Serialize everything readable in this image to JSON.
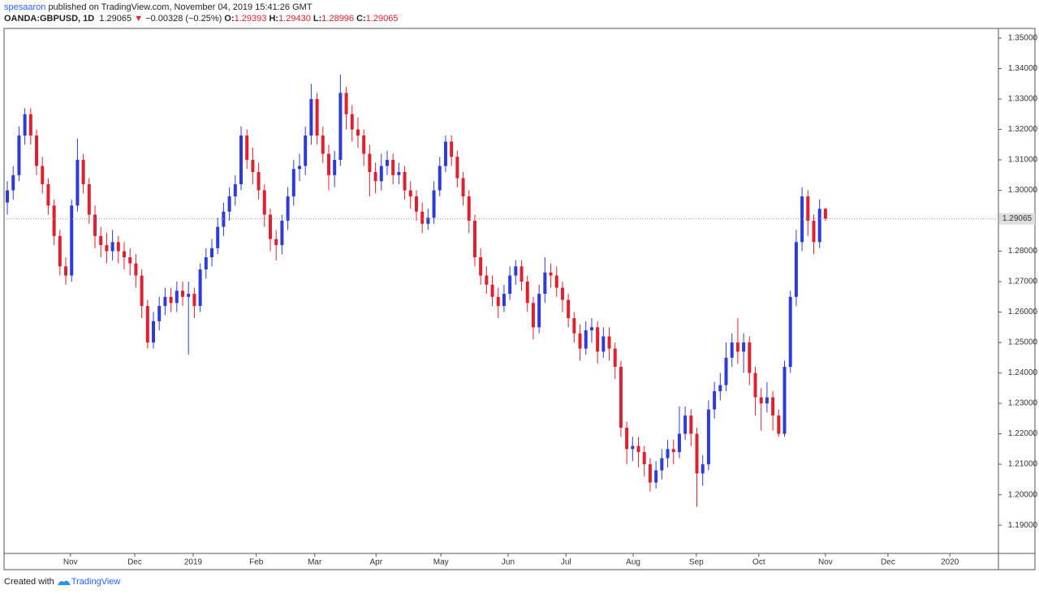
{
  "header": {
    "author": "spesaaron",
    "published": "published on TradingView.com, November 04, 2019 15:41:26 GMT",
    "symbol": "OANDA:GBPUSD, 1D",
    "price": "1.29065",
    "arrow": "▼",
    "change": "−0.00328 (−0.25%)",
    "open_label": "O:",
    "open": "1.29393",
    "high_label": "H:",
    "high": "1.29430",
    "low_label": "L:",
    "low": "1.28996",
    "close_label": "C:",
    "close": "1.29065"
  },
  "footer": {
    "created": "Created with",
    "brand": "TradingView"
  },
  "chart_data": {
    "type": "candlestick",
    "up_color": "#2e3bd6",
    "down_color": "#e0202e",
    "last_price": {
      "value": 1.29065,
      "label": "1.29065"
    },
    "xlim": [
      -0.56,
      169.6
    ],
    "xticks": [
      {
        "value": 10.8,
        "label": "Nov"
      },
      {
        "value": 21.8,
        "label": "Dec"
      },
      {
        "value": 31.8,
        "label": "2019"
      },
      {
        "value": 42.6,
        "label": "Feb"
      },
      {
        "value": 52.6,
        "label": "Mar"
      },
      {
        "value": 63.1,
        "label": "Apr"
      },
      {
        "value": 74.2,
        "label": "May"
      },
      {
        "value": 85.7,
        "label": "Jun"
      },
      {
        "value": 95.6,
        "label": "Jul"
      },
      {
        "value": 107.1,
        "label": "Aug"
      },
      {
        "value": 117.9,
        "label": "Sep"
      },
      {
        "value": 128.6,
        "label": "Oct"
      },
      {
        "value": 140,
        "label": "Nov"
      },
      {
        "value": 150.7,
        "label": "Dec"
      },
      {
        "value": 161.3,
        "label": "2020"
      }
    ],
    "ylim": [
      1.1807,
      1.3532
    ],
    "yticks": [
      {
        "value": 1.19,
        "label": "1.19000"
      },
      {
        "value": 1.2,
        "label": "1.20000"
      },
      {
        "value": 1.21,
        "label": "1.21000"
      },
      {
        "value": 1.22,
        "label": "1.22000"
      },
      {
        "value": 1.23,
        "label": "1.23000"
      },
      {
        "value": 1.24,
        "label": "1.24000"
      },
      {
        "value": 1.25,
        "label": "1.25000"
      },
      {
        "value": 1.26,
        "label": "1.26000"
      },
      {
        "value": 1.27,
        "label": "1.27000"
      },
      {
        "value": 1.28,
        "label": "1.28000"
      },
      {
        "value": 1.3,
        "label": "1.30000"
      },
      {
        "value": 1.31,
        "label": "1.31000"
      },
      {
        "value": 1.32,
        "label": "1.32000"
      },
      {
        "value": 1.33,
        "label": "1.33000"
      },
      {
        "value": 1.34,
        "label": "1.34000"
      },
      {
        "value": 1.35,
        "label": "1.35000"
      }
    ],
    "open": [
      1.296,
      1.3,
      1.305,
      1.318,
      1.325,
      1.318,
      1.308,
      1.302,
      1.295,
      1.285,
      1.275,
      1.272,
      1.295,
      1.31,
      1.302,
      1.292,
      1.285,
      1.282,
      1.28,
      1.283,
      1.28,
      1.278,
      1.276,
      1.272,
      1.262,
      1.25,
      1.257,
      1.262,
      1.265,
      1.263,
      1.267,
      1.265,
      1.266,
      1.262,
      1.274,
      1.278,
      1.281,
      1.288,
      1.293,
      1.298,
      1.302,
      1.318,
      1.31,
      1.306,
      1.3,
      1.292,
      1.284,
      1.282,
      1.29,
      1.298,
      1.307,
      1.308,
      1.318,
      1.33,
      1.318,
      1.312,
      1.305,
      1.31,
      1.332,
      1.325,
      1.32,
      1.318,
      1.312,
      1.306,
      1.303,
      1.308,
      1.31,
      1.305,
      1.306,
      1.3,
      1.298,
      1.293,
      1.289,
      1.291,
      1.3,
      1.308,
      1.316,
      1.311,
      1.304,
      1.298,
      1.29,
      1.278,
      1.272,
      1.269,
      1.265,
      1.262,
      1.266,
      1.272,
      1.275,
      1.27,
      1.263,
      1.255,
      1.266,
      1.273,
      1.272,
      1.268,
      1.264,
      1.258,
      1.253,
      1.248,
      1.254,
      1.255,
      1.247,
      1.252,
      1.248,
      1.242,
      1.222,
      1.215,
      1.216,
      1.214,
      1.21,
      1.204,
      1.208,
      1.212,
      1.215,
      1.214,
      1.22,
      1.226,
      1.22,
      1.207,
      1.21,
      1.228,
      1.234,
      1.236,
      1.245,
      1.25,
      1.247,
      1.25,
      1.24,
      1.232,
      1.23,
      1.232,
      1.226,
      1.22,
      1.242,
      1.265,
      1.283,
      1.298,
      1.29,
      1.283,
      1.29393
    ],
    "high": [
      1.303,
      1.308,
      1.321,
      1.327,
      1.327,
      1.32,
      1.311,
      1.304,
      1.297,
      1.287,
      1.278,
      1.297,
      1.317,
      1.312,
      1.304,
      1.295,
      1.288,
      1.286,
      1.287,
      1.285,
      1.283,
      1.281,
      1.279,
      1.274,
      1.264,
      1.26,
      1.265,
      1.268,
      1.268,
      1.27,
      1.27,
      1.27,
      1.268,
      1.276,
      1.281,
      1.284,
      1.291,
      1.296,
      1.301,
      1.305,
      1.321,
      1.32,
      1.314,
      1.309,
      1.302,
      1.294,
      1.287,
      1.292,
      1.301,
      1.31,
      1.312,
      1.321,
      1.335,
      1.332,
      1.321,
      1.315,
      1.313,
      1.338,
      1.334,
      1.328,
      1.324,
      1.32,
      1.315,
      1.309,
      1.312,
      1.313,
      1.312,
      1.309,
      1.308,
      1.303,
      1.3,
      1.296,
      1.294,
      1.303,
      1.311,
      1.318,
      1.318,
      1.313,
      1.306,
      1.3,
      1.292,
      1.281,
      1.275,
      1.272,
      1.268,
      1.269,
      1.275,
      1.277,
      1.277,
      1.272,
      1.265,
      1.269,
      1.278,
      1.276,
      1.275,
      1.27,
      1.266,
      1.26,
      1.256,
      1.257,
      1.258,
      1.257,
      1.255,
      1.255,
      1.25,
      1.244,
      1.224,
      1.219,
      1.219,
      1.216,
      1.212,
      1.211,
      1.215,
      1.218,
      1.218,
      1.229,
      1.229,
      1.228,
      1.222,
      1.213,
      1.231,
      1.237,
      1.24,
      1.25,
      1.253,
      1.258,
      1.253,
      1.252,
      1.242,
      1.235,
      1.237,
      1.234,
      1.228,
      1.244,
      1.267,
      1.287,
      1.301,
      1.3,
      1.292,
      1.297,
      1.2943
    ],
    "low": [
      1.292,
      1.297,
      1.303,
      1.315,
      1.315,
      1.305,
      1.299,
      1.292,
      1.282,
      1.272,
      1.269,
      1.27,
      1.293,
      1.299,
      1.289,
      1.281,
      1.278,
      1.276,
      1.277,
      1.276,
      1.274,
      1.272,
      1.268,
      1.258,
      1.248,
      1.248,
      1.254,
      1.259,
      1.26,
      1.26,
      1.262,
      1.246,
      1.258,
      1.26,
      1.271,
      1.275,
      1.279,
      1.285,
      1.29,
      1.295,
      1.3,
      1.307,
      1.302,
      1.297,
      1.288,
      1.28,
      1.277,
      1.279,
      1.287,
      1.295,
      1.303,
      1.305,
      1.315,
      1.315,
      1.309,
      1.3,
      1.301,
      1.308,
      1.32,
      1.316,
      1.314,
      1.308,
      1.298,
      1.299,
      1.3,
      1.305,
      1.302,
      1.302,
      1.297,
      1.294,
      1.29,
      1.286,
      1.287,
      1.289,
      1.298,
      1.306,
      1.308,
      1.301,
      1.295,
      1.286,
      1.275,
      1.269,
      1.266,
      1.262,
      1.258,
      1.26,
      1.264,
      1.269,
      1.267,
      1.26,
      1.251,
      1.253,
      1.263,
      1.268,
      1.265,
      1.26,
      1.255,
      1.25,
      1.244,
      1.246,
      1.25,
      1.243,
      1.245,
      1.244,
      1.238,
      1.219,
      1.21,
      1.211,
      1.209,
      1.206,
      1.201,
      1.202,
      1.205,
      1.209,
      1.21,
      1.212,
      1.218,
      1.216,
      1.196,
      1.203,
      1.208,
      1.225,
      1.231,
      1.234,
      1.242,
      1.243,
      1.24,
      1.236,
      1.226,
      1.221,
      1.227,
      1.221,
      1.219,
      1.219,
      1.24,
      1.262,
      1.28,
      1.285,
      1.279,
      1.281,
      1.28996
    ],
    "close": [
      1.3,
      1.305,
      1.318,
      1.325,
      1.318,
      1.308,
      1.302,
      1.295,
      1.285,
      1.275,
      1.272,
      1.295,
      1.31,
      1.302,
      1.292,
      1.285,
      1.282,
      1.28,
      1.283,
      1.28,
      1.278,
      1.276,
      1.272,
      1.262,
      1.25,
      1.257,
      1.262,
      1.265,
      1.263,
      1.267,
      1.265,
      1.266,
      1.262,
      1.274,
      1.278,
      1.281,
      1.288,
      1.293,
      1.298,
      1.302,
      1.318,
      1.31,
      1.306,
      1.3,
      1.292,
      1.284,
      1.282,
      1.29,
      1.298,
      1.307,
      1.308,
      1.318,
      1.33,
      1.318,
      1.312,
      1.305,
      1.31,
      1.332,
      1.325,
      1.32,
      1.318,
      1.312,
      1.306,
      1.303,
      1.308,
      1.31,
      1.305,
      1.306,
      1.3,
      1.298,
      1.293,
      1.289,
      1.291,
      1.3,
      1.308,
      1.316,
      1.311,
      1.304,
      1.298,
      1.29,
      1.278,
      1.272,
      1.269,
      1.265,
      1.262,
      1.266,
      1.272,
      1.275,
      1.27,
      1.263,
      1.255,
      1.266,
      1.273,
      1.272,
      1.268,
      1.264,
      1.258,
      1.253,
      1.248,
      1.254,
      1.255,
      1.247,
      1.252,
      1.248,
      1.242,
      1.222,
      1.215,
      1.216,
      1.214,
      1.21,
      1.204,
      1.208,
      1.212,
      1.215,
      1.214,
      1.22,
      1.226,
      1.22,
      1.207,
      1.21,
      1.228,
      1.234,
      1.236,
      1.245,
      1.25,
      1.247,
      1.25,
      1.24,
      1.232,
      1.23,
      1.232,
      1.226,
      1.22,
      1.242,
      1.265,
      1.283,
      1.298,
      1.29,
      1.283,
      1.29393,
      1.29065
    ]
  }
}
